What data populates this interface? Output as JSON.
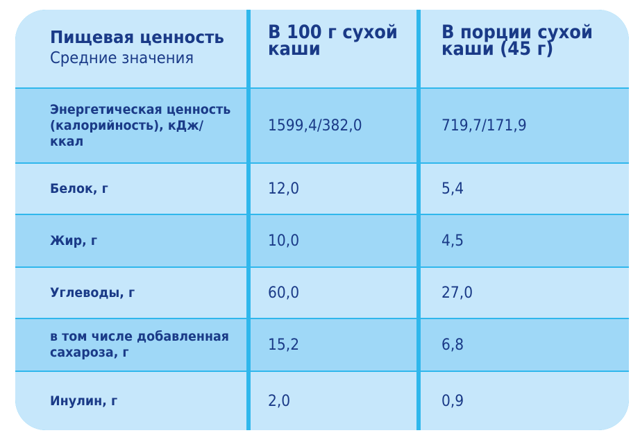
{
  "header": {
    "col1_title": "Пищевая ценность",
    "col1_subtitle": "Средние значения",
    "col2_title": "В 100 г сухой\nкаши",
    "col3_title": "В  порции сухой\nкаши  (45 г)"
  },
  "rows": [
    {
      "label": "Энергетическая ценность\n(калорийность), кДж/ккал",
      "per100": "1599,4/382,0",
      "perServing": "719,7/171,9"
    },
    {
      "label": "Белок, г",
      "per100": "12,0",
      "perServing": "5,4"
    },
    {
      "label": "Жир, г",
      "per100": "10,0",
      "perServing": "4,5"
    },
    {
      "label": "Углеводы, г",
      "per100": "60,0",
      "perServing": "27,0"
    },
    {
      "label": "в том числе добавленная\nсахароза, г",
      "per100": "15,2",
      "perServing": "6,8"
    },
    {
      "label": "Инулин, г",
      "per100": "2,0",
      "perServing": "0,9"
    }
  ],
  "colors": {
    "frame": "#2fb7ec",
    "row_light": "#c6e7fb",
    "row_dark": "#9fd8f7",
    "text": "#1a3a87"
  }
}
